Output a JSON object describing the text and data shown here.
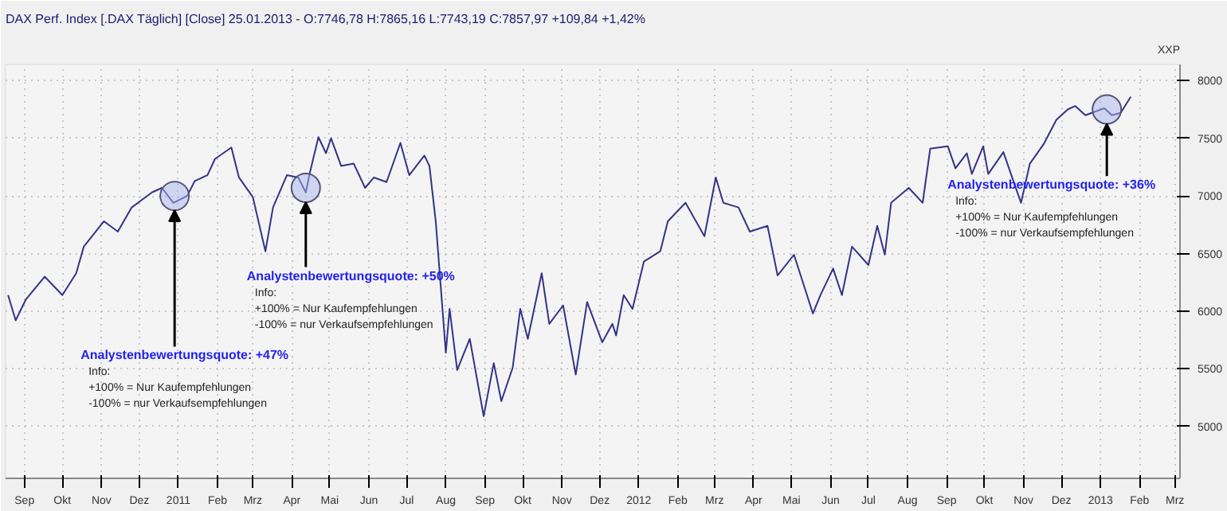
{
  "chart_data": {
    "type": "line",
    "title": "DAX Perf. Index [.DAX  Täglich] [Close] 25.01.2013 - O:7746,78 H:7865,16 L:7743,19 C:7857,97 +109,84 +1,42%",
    "ylabel": "XXP",
    "xlim": [
      "2010-08-17",
      "2013-03-05"
    ],
    "ylim": [
      4550,
      8140
    ],
    "xticks": [
      {
        "value": "2010-09-01",
        "label": "Sep"
      },
      {
        "value": "2010-10-01",
        "label": "Okt"
      },
      {
        "value": "2010-11-01",
        "label": "Nov"
      },
      {
        "value": "2010-12-01",
        "label": "Dez"
      },
      {
        "value": "2011-01-01",
        "label": "2011"
      },
      {
        "value": "2011-02-01",
        "label": "Feb"
      },
      {
        "value": "2011-03-01",
        "label": "Mrz"
      },
      {
        "value": "2011-04-01",
        "label": "Apr"
      },
      {
        "value": "2011-05-01",
        "label": "Mai"
      },
      {
        "value": "2011-06-01",
        "label": "Jun"
      },
      {
        "value": "2011-07-01",
        "label": "Jul"
      },
      {
        "value": "2011-08-01",
        "label": "Aug"
      },
      {
        "value": "2011-09-01",
        "label": "Sep"
      },
      {
        "value": "2011-10-01",
        "label": "Okt"
      },
      {
        "value": "2011-11-01",
        "label": "Nov"
      },
      {
        "value": "2011-12-01",
        "label": "Dez"
      },
      {
        "value": "2012-01-01",
        "label": "2012"
      },
      {
        "value": "2012-02-01",
        "label": "Feb"
      },
      {
        "value": "2012-03-01",
        "label": "Mrz"
      },
      {
        "value": "2012-04-01",
        "label": "Apr"
      },
      {
        "value": "2012-05-01",
        "label": "Mai"
      },
      {
        "value": "2012-06-01",
        "label": "Jun"
      },
      {
        "value": "2012-07-01",
        "label": "Jul"
      },
      {
        "value": "2012-08-01",
        "label": "Aug"
      },
      {
        "value": "2012-09-01",
        "label": "Sep"
      },
      {
        "value": "2012-10-01",
        "label": "Okt"
      },
      {
        "value": "2012-11-01",
        "label": "Nov"
      },
      {
        "value": "2012-12-01",
        "label": "Dez"
      },
      {
        "value": "2013-01-01",
        "label": "2013"
      },
      {
        "value": "2013-02-01",
        "label": "Feb"
      },
      {
        "value": "2013-03-01",
        "label": "Mrz"
      }
    ],
    "yticks": [
      5000,
      5500,
      6000,
      6500,
      7000,
      7500,
      8000
    ],
    "grid": true,
    "x": [
      "2010-08-19",
      "2010-08-25",
      "2010-09-02",
      "2010-09-17",
      "2010-10-01",
      "2010-10-12",
      "2010-10-18",
      "2010-11-03",
      "2010-11-14",
      "2010-11-25",
      "2010-12-11",
      "2010-12-19",
      "2010-12-28",
      "2011-01-08",
      "2011-01-14",
      "2011-01-24",
      "2011-01-30",
      "2011-02-12",
      "2011-02-18",
      "2011-03-01",
      "2011-03-11",
      "2011-03-17",
      "2011-03-28",
      "2011-04-06",
      "2011-04-12",
      "2011-04-15",
      "2011-04-22",
      "2011-04-28",
      "2011-05-02",
      "2011-05-10",
      "2011-05-20",
      "2011-05-29",
      "2011-06-05",
      "2011-06-15",
      "2011-06-26",
      "2011-07-03",
      "2011-07-15",
      "2011-07-19",
      "2011-07-24",
      "2011-08-01",
      "2011-08-04",
      "2011-08-10",
      "2011-08-20",
      "2011-08-31",
      "2011-09-08",
      "2011-09-14",
      "2011-09-23",
      "2011-09-29",
      "2011-10-05",
      "2011-10-16",
      "2011-10-22",
      "2011-11-02",
      "2011-11-12",
      "2011-11-21",
      "2011-12-03",
      "2011-12-11",
      "2011-12-14",
      "2011-12-20",
      "2011-12-27",
      "2012-01-05",
      "2012-01-18",
      "2012-01-24",
      "2012-02-07",
      "2012-02-22",
      "2012-03-02",
      "2012-03-08",
      "2012-03-20",
      "2012-03-29",
      "2012-04-12",
      "2012-04-20",
      "2012-05-03",
      "2012-05-18",
      "2012-05-24",
      "2012-06-03",
      "2012-06-10",
      "2012-06-18",
      "2012-07-01",
      "2012-07-08",
      "2012-07-14",
      "2012-07-19",
      "2012-08-02",
      "2012-08-13",
      "2012-08-19",
      "2012-09-02",
      "2012-09-08",
      "2012-09-17",
      "2012-09-21",
      "2012-09-30",
      "2012-10-04",
      "2012-10-16",
      "2012-10-22",
      "2012-10-30",
      "2012-11-06",
      "2012-11-17",
      "2012-11-27",
      "2012-12-06",
      "2012-12-12",
      "2012-12-20",
      "2013-01-04",
      "2013-01-10",
      "2013-01-17",
      "2013-01-25"
    ],
    "values": [
      6140,
      5920,
      6100,
      6300,
      6140,
      6330,
      6560,
      6780,
      6690,
      6900,
      7030,
      7070,
      6940,
      7000,
      7130,
      7180,
      7320,
      7420,
      7160,
      6990,
      6520,
      6900,
      7180,
      7160,
      7030,
      7190,
      7510,
      7370,
      7500,
      7260,
      7280,
      7070,
      7160,
      7120,
      7460,
      7180,
      7350,
      7260,
      6780,
      5640,
      6020,
      5490,
      5760,
      5090,
      5550,
      5220,
      5510,
      6020,
      5760,
      6330,
      5890,
      6050,
      5450,
      6080,
      5730,
      5890,
      5790,
      6140,
      6020,
      6430,
      6520,
      6780,
      6940,
      6650,
      7160,
      6940,
      6900,
      6690,
      6740,
      6310,
      6490,
      5980,
      6140,
      6370,
      6140,
      6560,
      6400,
      6740,
      6490,
      6940,
      7070,
      6940,
      7410,
      7430,
      7240,
      7370,
      7190,
      7430,
      7190,
      7380,
      7190,
      6940,
      7280,
      7450,
      7660,
      7750,
      7780,
      7700,
      7760,
      7700,
      7720,
      7860
    ],
    "color": "#333388",
    "annotations": [
      {
        "text": "Analystenbewertungsquote: +47%\nInfo:\n+100% = Nur Kaufempfehlungen\n-100% = nur Verkaufsempfehlungen",
        "x": "2010-12-29",
        "y": 7000
      },
      {
        "text": "Analystenbewertungsquote: +50%\nInfo:\n+100% = Nur Kaufempfehlungen\n-100% = nur Verkaufsempfehlungen",
        "x": "2011-04-12",
        "y": 7070
      },
      {
        "text": "Analystenbewertungsquote: +36%\nInfo:\n+100% = Nur Kaufempfehlungen\n-100% = nur Verkaufsempfehlungen",
        "x": "2013-01-06",
        "y": 7750
      }
    ]
  }
}
